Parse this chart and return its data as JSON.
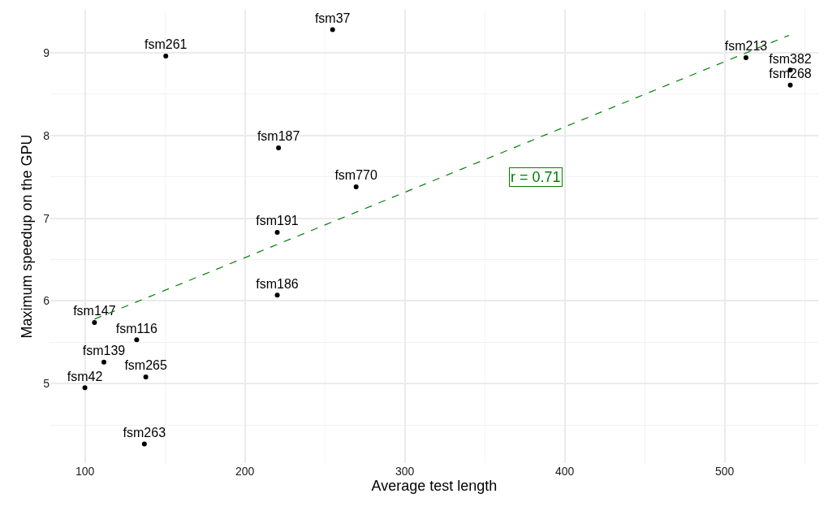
{
  "chart_data": {
    "type": "scatter",
    "xlabel": "Average test length",
    "ylabel": "Maximum speedup on the GPU",
    "xlim": [
      78.4,
      558.6
    ],
    "ylim": [
      4.04,
      9.52
    ],
    "xticks": [
      100,
      {
        "value": 150,
        "label": null
      },
      200,
      {
        "value": 250,
        "label": null
      },
      300,
      {
        "value": 350,
        "label": null
      },
      400,
      {
        "value": 450,
        "label": null
      },
      500,
      {
        "value": 550,
        "label": null
      }
    ],
    "yticks": [
      {
        "value": 4.5,
        "label": null
      },
      5,
      {
        "value": 5.5,
        "label": null
      },
      6,
      {
        "value": 6.5,
        "label": null
      },
      7,
      {
        "value": 7.5,
        "label": null
      },
      8,
      {
        "value": 8.5,
        "label": null
      },
      9
    ],
    "grid": true,
    "marker": "circle",
    "series": [
      {
        "color": "#000000",
        "x": [
          254.9,
          150.6,
          221.1,
          269.6,
          220.3,
          220.3,
          106,
          132.4,
          111.9,
          138.1,
          100,
          137.2,
          513.4,
          541.1,
          541.1
        ],
        "values": [
          9.28,
          8.96,
          7.85,
          7.38,
          6.83,
          6.07,
          5.74,
          5.53,
          5.26,
          5.08,
          4.95,
          4.27,
          8.94,
          8.79,
          8.61
        ],
        "value_labels": [
          "fsm37",
          "fsm261",
          "fsm187",
          "fsm770",
          "fsm191",
          "fsm186",
          "fsm147",
          "fsm116",
          "fsm139",
          "fsm265",
          "fsm42",
          "fsm263",
          "fsm213",
          "fsm382",
          "fsm268"
        ]
      },
      {
        "type": "line",
        "color": "#008000",
        "line_style": "dashed",
        "marker": "none",
        "x": [
          106,
          540.2
        ],
        "values": [
          5.78,
          9.21
        ]
      }
    ],
    "annotations": [
      "r = 0.71"
    ]
  }
}
